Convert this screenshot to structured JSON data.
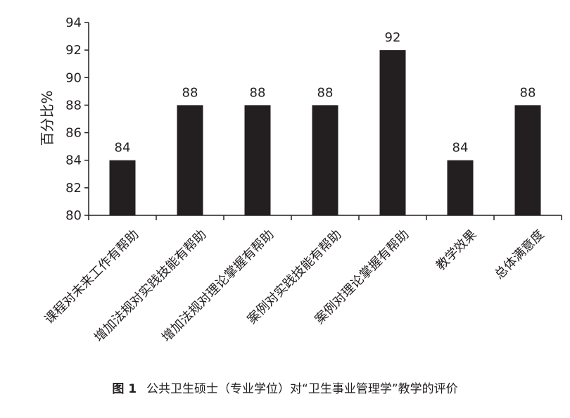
{
  "chart_data": {
    "type": "bar",
    "categories": [
      "课程对未来工作有帮助",
      "增加法规对实践技能有帮助",
      "增加法规对理论掌握有帮助",
      "案例对实践技能有帮助",
      "案例对理论掌握有帮助",
      "教学效果",
      "总体满意度"
    ],
    "values": [
      84,
      88,
      88,
      88,
      92,
      84,
      88
    ],
    "data_labels": [
      "84",
      "88",
      "88",
      "88",
      "92",
      "84",
      "88"
    ],
    "ylabel": "百分比%",
    "xlabel": "",
    "ylim": [
      80,
      94
    ],
    "yticks": [
      80,
      82,
      84,
      86,
      88,
      90,
      92,
      94
    ],
    "grid": false,
    "bar_color": "#231f20"
  },
  "caption": {
    "label": "图 1",
    "text": "公共卫生硕士（专业学位）对“卫生事业管理学”教学的评价"
  }
}
